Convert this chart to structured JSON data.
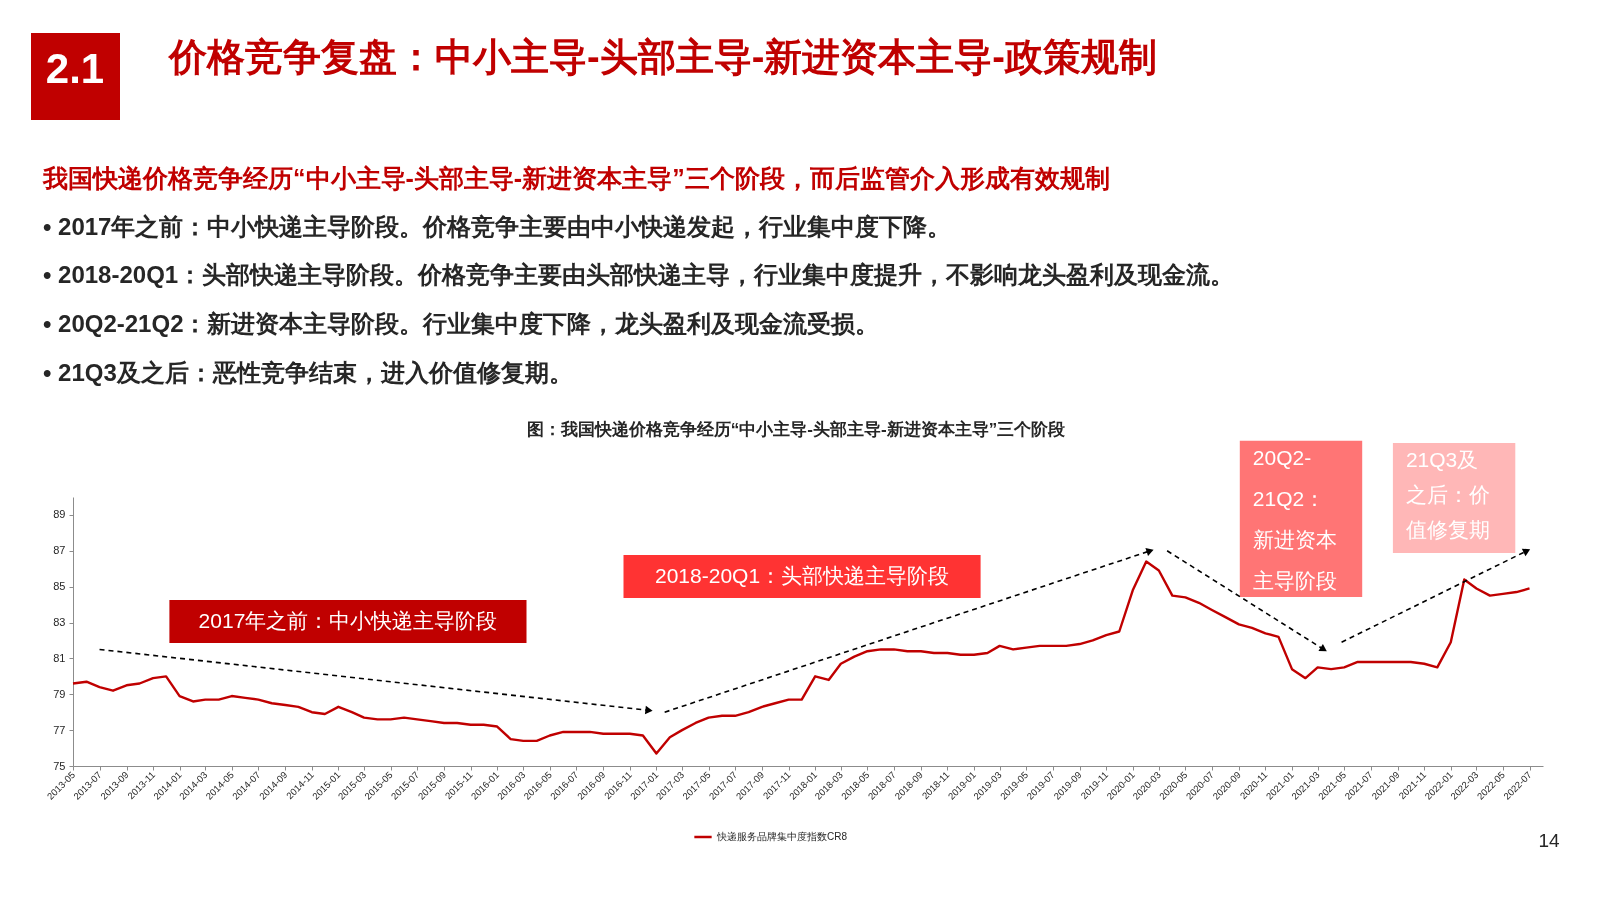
{
  "chart_data": {
    "type": "line",
    "title": "价格竞争复盘：中小主导-头部主导-新进资本主导-政策规制",
    "subtitle": "我国快递价格竞争经历“中小主导-头部主导-新进资本主导”三个阶段，而后监管介入形成有效规制",
    "annotations": [
      "2.1",
      "• 2017年之前：中小快递主导阶段。价格竞争主要由中小快递发起，行业集中度下降。",
      "• 2018-20Q1：头部快递主导阶段。价格竞争主要由头部快递主导，行业集中度提升，不影响龙头盈利及现金流。",
      "• 20Q2-21Q2：新进资本主导阶段。行业集中度下降，龙头盈利及现金流受损。",
      "• 21Q3及之后：恶性竞争结束，进入价值修复期。",
      "图：我国快递价格竞争经历“中小主导-头部主导-新进资本主导”三个阶段",
      "2017年之前：中小快递主导阶段",
      "2018-20Q1：头部快递主导阶段",
      "20Q2-21Q2：新进资本主导阶段",
      "21Q3及之后：价值修复期",
      "14"
    ],
    "x": [
      "2013-05",
      "2013-06",
      "2013-07",
      "2013-08",
      "2013-09",
      "2013-10",
      "2013-11",
      "2013-12",
      "2014-01",
      "2014-02",
      "2014-03",
      "2014-04",
      "2014-05",
      "2014-06",
      "2014-07",
      "2014-08",
      "2014-09",
      "2014-10",
      "2014-11",
      "2014-12",
      "2015-01",
      "2015-02",
      "2015-03",
      "2015-04",
      "2015-05",
      "2015-06",
      "2015-07",
      "2015-08",
      "2015-09",
      "2015-10",
      "2015-11",
      "2015-12",
      "2016-01",
      "2016-02",
      "2016-03",
      "2016-04",
      "2016-05",
      "2016-06",
      "2016-07",
      "2016-08",
      "2016-09",
      "2016-10",
      "2016-11",
      "2016-12",
      "2017-01",
      "2017-02",
      "2017-03",
      "2017-04",
      "2017-05",
      "2017-06",
      "2017-07",
      "2017-08",
      "2017-09",
      "2017-10",
      "2017-11",
      "2017-12",
      "2018-01",
      "2018-02",
      "2018-03",
      "2018-04",
      "2018-05",
      "2018-06",
      "2018-07",
      "2018-08",
      "2018-09",
      "2018-10",
      "2018-11",
      "2018-12",
      "2019-01",
      "2019-02",
      "2019-03",
      "2019-04",
      "2019-05",
      "2019-06",
      "2019-07",
      "2019-08",
      "2019-09",
      "2019-10",
      "2019-11",
      "2019-12",
      "2020-01",
      "2020-02",
      "2020-03",
      "2020-04",
      "2020-05",
      "2020-06",
      "2020-07",
      "2020-08",
      "2020-09",
      "2020-10",
      "2020-11",
      "2020-12",
      "2021-01",
      "2021-02",
      "2021-03",
      "2021-04",
      "2021-05",
      "2021-06",
      "2021-07",
      "2021-08",
      "2021-09",
      "2021-10",
      "2021-11",
      "2021-12",
      "2022-01",
      "2022-02",
      "2022-03",
      "2022-04",
      "2022-05",
      "2022-06",
      "2022-07"
    ],
    "series": [
      {
        "name": "快递服务品牌集中度指数CR8",
        "color": "#c00000",
        "values": [
          79.6,
          79.7,
          79.4,
          79.2,
          79.5,
          79.6,
          79.9,
          80.0,
          78.9,
          78.6,
          78.7,
          78.7,
          78.9,
          78.8,
          78.7,
          78.5,
          78.4,
          78.3,
          78.0,
          77.9,
          78.3,
          78.0,
          77.7,
          77.6,
          77.6,
          77.7,
          77.6,
          77.5,
          77.4,
          77.4,
          77.3,
          77.3,
          77.2,
          76.5,
          76.4,
          76.4,
          76.7,
          76.9,
          76.9,
          76.9,
          76.8,
          76.8,
          76.8,
          76.7,
          75.7,
          76.6,
          77.0,
          77.4,
          77.7,
          77.8,
          77.8,
          78.0,
          78.3,
          78.5,
          78.7,
          78.7,
          80.0,
          79.8,
          80.7,
          81.1,
          81.4,
          81.5,
          81.5,
          81.4,
          81.4,
          81.3,
          81.3,
          81.2,
          81.2,
          81.3,
          81.7,
          81.5,
          81.6,
          81.7,
          81.7,
          81.7,
          81.8,
          82.0,
          82.3,
          82.5,
          84.8,
          86.4,
          85.9,
          84.5,
          84.4,
          84.1,
          83.7,
          83.3,
          82.9,
          82.7,
          82.4,
          82.2,
          80.4,
          79.9,
          80.5,
          80.4,
          80.5,
          80.8,
          80.8,
          80.8,
          80.8,
          80.8,
          80.7,
          80.5,
          81.9,
          85.4,
          84.9,
          84.5,
          84.6,
          84.7,
          84.9
        ]
      },
      {
        "type": "line",
        "color": "#000000",
        "line_style": "dashed",
        "x": [
          "2013-07",
          "2016-12-15"
        ],
        "values": [
          81.5,
          78.1
        ]
      },
      {
        "type": "line",
        "color": "#000000",
        "line_style": "dashed",
        "x": [
          "2017-01-20",
          "2020-02-10"
        ],
        "values": [
          78.0,
          87.0
        ]
      },
      {
        "type": "line",
        "color": "#000000",
        "line_style": "dashed",
        "x": [
          "2020-03-20",
          "2021-03-15"
        ],
        "values": [
          87.0,
          81.5
        ]
      },
      {
        "type": "line",
        "color": "#000000",
        "line_style": "dashed",
        "x": [
          "2021-04-25",
          "2022-06-25"
        ],
        "values": [
          81.9,
          87.0
        ]
      }
    ],
    "xlim": [
      "2013-05",
      "2022-08"
    ],
    "xticks": [
      "2013-05",
      "2013-07",
      "2013-09",
      "2013-11",
      "2014-01",
      "2014-03",
      "2014-05",
      "2014-07",
      "2014-09",
      "2014-11",
      "2015-01",
      "2015-03",
      "2015-05",
      "2015-07",
      "2015-09",
      "2015-11",
      "2016-01",
      "2016-03",
      "2016-05",
      "2016-07",
      "2016-09",
      "2016-11",
      "2017-01",
      "2017-03",
      "2017-05",
      "2017-07",
      "2017-09",
      "2017-11",
      "2018-01",
      "2018-03",
      "2018-05",
      "2018-07",
      "2018-09",
      "2018-11",
      "2019-01",
      "2019-03",
      "2019-05",
      "2019-07",
      "2019-09",
      "2019-11",
      "2020-01",
      "2020-03",
      "2020-05",
      "2020-07",
      "2020-09",
      "2020-11",
      "2021-01",
      "2021-03",
      "2021-05",
      "2021-07",
      "2021-09",
      "2021-11",
      "2022-01",
      "2022-03",
      "2022-05",
      "2022-07"
    ],
    "ylim": [
      75,
      90
    ],
    "yticks": [
      75,
      77,
      79,
      81,
      83,
      85,
      87,
      89
    ],
    "legend": "bottom"
  }
}
